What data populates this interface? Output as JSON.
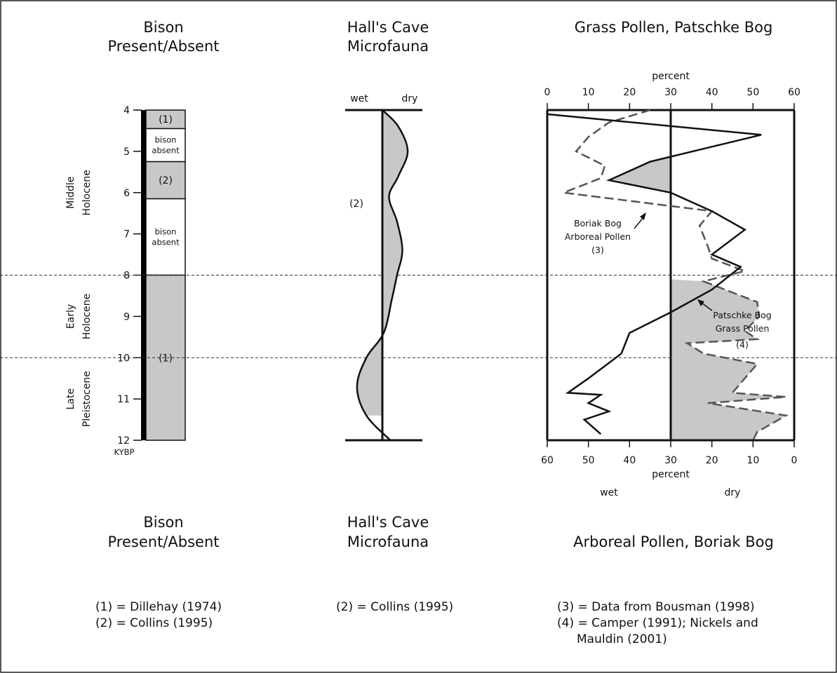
{
  "titles": {
    "bison_top": [
      "Bison",
      "Present/Absent"
    ],
    "cave_top": [
      "Hall's Cave",
      "Microfauna"
    ],
    "pollen_top": "Grass Pollen, Patschke Bog",
    "bison_bottom": [
      "Bison",
      "Present/Absent"
    ],
    "cave_bottom": [
      "Hall's Cave",
      "Microfauna"
    ],
    "pollen_bottom": "Arboreal Pollen, Boriak Bog"
  },
  "depth_axis": {
    "ticks": [
      "4",
      "5",
      "6",
      "7",
      "8",
      "9",
      "10",
      "11",
      "12"
    ],
    "unit": "KYBP",
    "range": [
      4,
      12
    ]
  },
  "periods": [
    {
      "lines": [
        "Middle",
        "Holocene"
      ],
      "from": 4,
      "to": 8
    },
    {
      "lines": [
        "Early",
        "Holocene"
      ],
      "from": 8,
      "to": 10
    },
    {
      "lines": [
        "Late",
        "Pleistocene"
      ],
      "from": 10,
      "to": 12
    }
  ],
  "bison_column": [
    {
      "from": 4.0,
      "to": 4.45,
      "present": true,
      "label": [
        "(1)"
      ]
    },
    {
      "from": 4.45,
      "to": 5.25,
      "present": false,
      "label": [
        "bison",
        "absent"
      ]
    },
    {
      "from": 5.25,
      "to": 6.15,
      "present": true,
      "label": [
        "(2)"
      ]
    },
    {
      "from": 6.15,
      "to": 8.0,
      "present": false,
      "label": [
        "bison",
        "absent"
      ]
    },
    {
      "from": 8.0,
      "to": 12.0,
      "present": true,
      "label": [
        "(1)"
      ]
    }
  ],
  "cave": {
    "wet_label": "wet",
    "dry_label": "dry",
    "ref_label": "(2)",
    "curve": [
      [
        0.0,
        4.0
      ],
      [
        0.6,
        4.4
      ],
      [
        0.95,
        5.0
      ],
      [
        0.6,
        5.6
      ],
      [
        0.25,
        6.1
      ],
      [
        0.55,
        6.7
      ],
      [
        0.75,
        7.4
      ],
      [
        0.55,
        8.0
      ],
      [
        0.35,
        8.6
      ],
      [
        0.05,
        9.4
      ],
      [
        -0.6,
        10.0
      ],
      [
        -0.95,
        10.7
      ],
      [
        -0.6,
        11.4
      ],
      [
        0.3,
        12.0
      ]
    ]
  },
  "chart_data": {
    "type": "line",
    "top_axis": {
      "label": "percent",
      "ticks": [
        "0",
        "10",
        "20",
        "30",
        "40",
        "50",
        "60"
      ],
      "range": [
        0,
        60
      ]
    },
    "bottom_axis": {
      "label": "percent",
      "ticks": [
        "60",
        "50",
        "40",
        "30",
        "20",
        "10",
        "0"
      ],
      "range": [
        60,
        0
      ],
      "left_label": "wet",
      "right_label": "dry"
    },
    "ylim": [
      4,
      12
    ],
    "series": [
      {
        "name": "Patschke Bog Grass Pollen",
        "ref": "(4)",
        "style": "solid",
        "color": "#111111",
        "points": [
          [
            0,
            4.1
          ],
          [
            52,
            4.6
          ],
          [
            25,
            5.25
          ],
          [
            15,
            5.7
          ],
          [
            30,
            6.0
          ],
          [
            40,
            6.45
          ],
          [
            48,
            6.9
          ],
          [
            40,
            7.5
          ],
          [
            47,
            7.8
          ],
          [
            40,
            8.35
          ],
          [
            30,
            8.9
          ],
          [
            20,
            9.4
          ],
          [
            18,
            9.9
          ],
          [
            10,
            10.5
          ],
          [
            5,
            10.85
          ],
          [
            13,
            10.9
          ],
          [
            10,
            11.1
          ],
          [
            15,
            11.3
          ],
          [
            9,
            11.5
          ],
          [
            13,
            11.85
          ]
        ]
      },
      {
        "name": "Boriak Bog Arboreal Pollen",
        "ref": "(3)",
        "style": "dashed",
        "color": "#555555",
        "points": [
          [
            25,
            4.0
          ],
          [
            15,
            4.3
          ],
          [
            10,
            4.65
          ],
          [
            7,
            5.0
          ],
          [
            14,
            5.35
          ],
          [
            13,
            5.65
          ],
          [
            4,
            6.0
          ],
          [
            40,
            6.45
          ],
          [
            37,
            6.8
          ],
          [
            39,
            7.3
          ],
          [
            40,
            7.6
          ],
          [
            48,
            7.9
          ],
          [
            38,
            8.15
          ],
          [
            51,
            8.65
          ],
          [
            51.5,
            9.0
          ],
          [
            48,
            9.35
          ],
          [
            51,
            9.55
          ],
          [
            34,
            9.65
          ],
          [
            38,
            9.9
          ],
          [
            51,
            10.15
          ],
          [
            48,
            10.5
          ],
          [
            45,
            10.85
          ],
          [
            58,
            10.95
          ],
          [
            39,
            11.1
          ],
          [
            58,
            11.4
          ],
          [
            51,
            11.8
          ],
          [
            50,
            12.0
          ]
        ]
      }
    ],
    "annotations": {
      "boriak": [
        "Boriak Bog",
        "Arboreal Pollen",
        "(3)"
      ],
      "patschke": [
        "Patschke Bog",
        "Grass Pollen",
        "(4)"
      ]
    }
  },
  "references": {
    "bison": [
      "(1) = Dillehay (1974)",
      "(2) = Collins (1995)"
    ],
    "cave": [
      "(2) = Collins (1995)"
    ],
    "pollen": [
      "(3) = Data from Bousman (1998)",
      "(4) = Camper (1991); Nickels and",
      "Mauldin (2001)"
    ]
  }
}
